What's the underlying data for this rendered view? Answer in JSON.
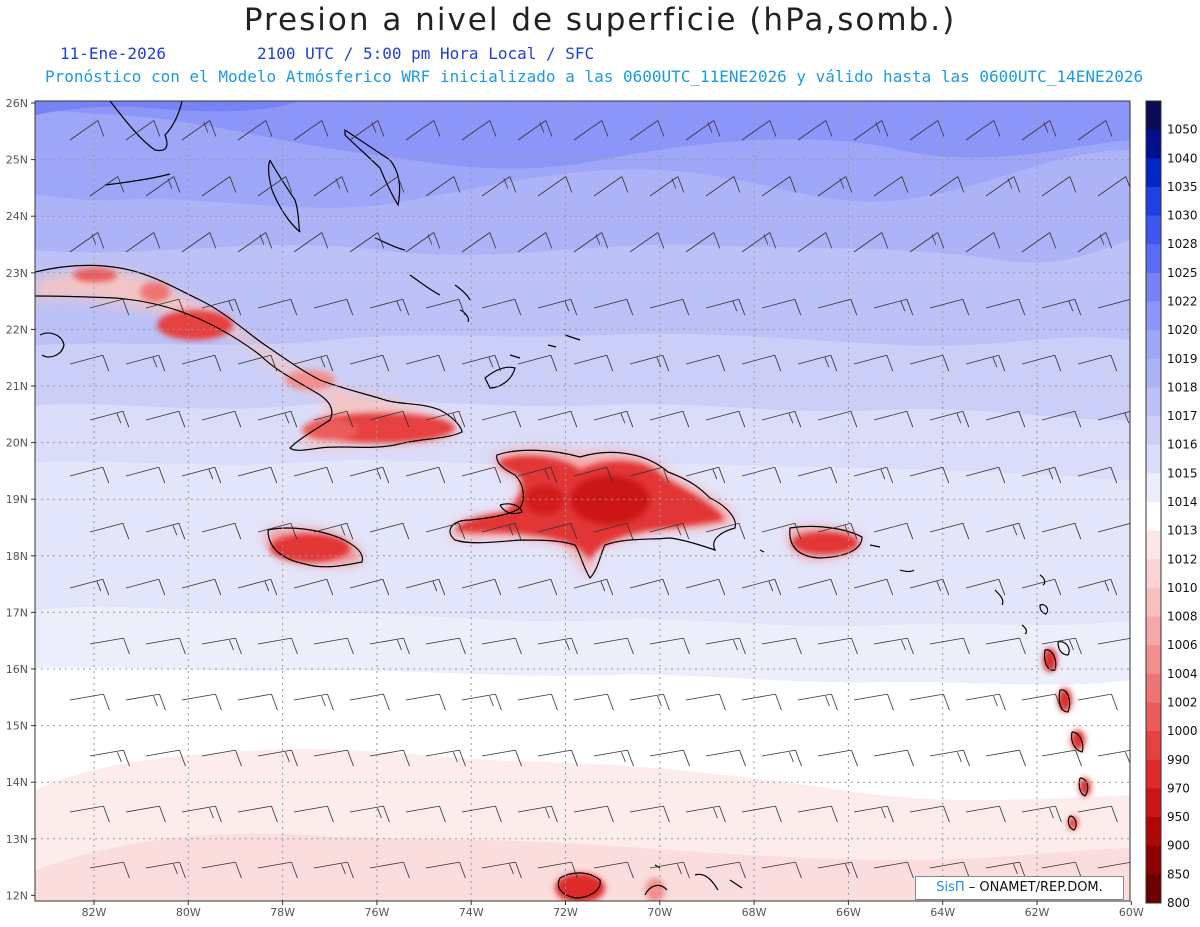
{
  "header": {
    "title": "Presion a nivel de superficie (hPa,somb.)",
    "date": "11-Ene-2026",
    "time": "2100 UTC / 5:00 pm Hora Local / SFC",
    "description": "Pronóstico con el Modelo Atmósferico WRF inicializado a las 0600UTC_11ENE2026 y válido hasta las  0600UTC_14ENE2026"
  },
  "lat_labels": [
    "26N",
    "25N",
    "24N",
    "23N",
    "22N",
    "21N",
    "20N",
    "19N",
    "18N",
    "17N",
    "16N",
    "15N",
    "14N",
    "13N",
    "12N"
  ],
  "lon_labels": [
    "82W",
    "80W",
    "78W",
    "76W",
    "74W",
    "72W",
    "70W",
    "68W",
    "66W",
    "64W",
    "62W",
    "60W"
  ],
  "colorbar": {
    "levels": [
      "1050",
      "1040",
      "1035",
      "1030",
      "1028",
      "1025",
      "1022",
      "1020",
      "1019",
      "1018",
      "1017",
      "1016",
      "1015",
      "1014",
      "1013",
      "1012",
      "1010",
      "1008",
      "1006",
      "1004",
      "1002",
      "1000",
      "990",
      "970",
      "950",
      "900",
      "850",
      "800"
    ],
    "colors": [
      "#0a0a55",
      "#000f8c",
      "#0026c8",
      "#2040e6",
      "#3f56f0",
      "#5a6cf5",
      "#7882f7",
      "#8c95f8",
      "#9ea6f8",
      "#adb3f7",
      "#bcc1f7",
      "#cbcff8",
      "#dadcfa",
      "#eceefc",
      "#ffffff",
      "#fde6e6",
      "#fbd3d3",
      "#f9c0c0",
      "#f6a8a8",
      "#f38f8f",
      "#ef7575",
      "#eb5b5b",
      "#e64040",
      "#de2a2a",
      "#cc1414",
      "#b00606",
      "#8e0000",
      "#6a0000"
    ]
  },
  "credit": {
    "brand": "SisΠ",
    "org": "– ONAMET/REP.DOM."
  }
}
